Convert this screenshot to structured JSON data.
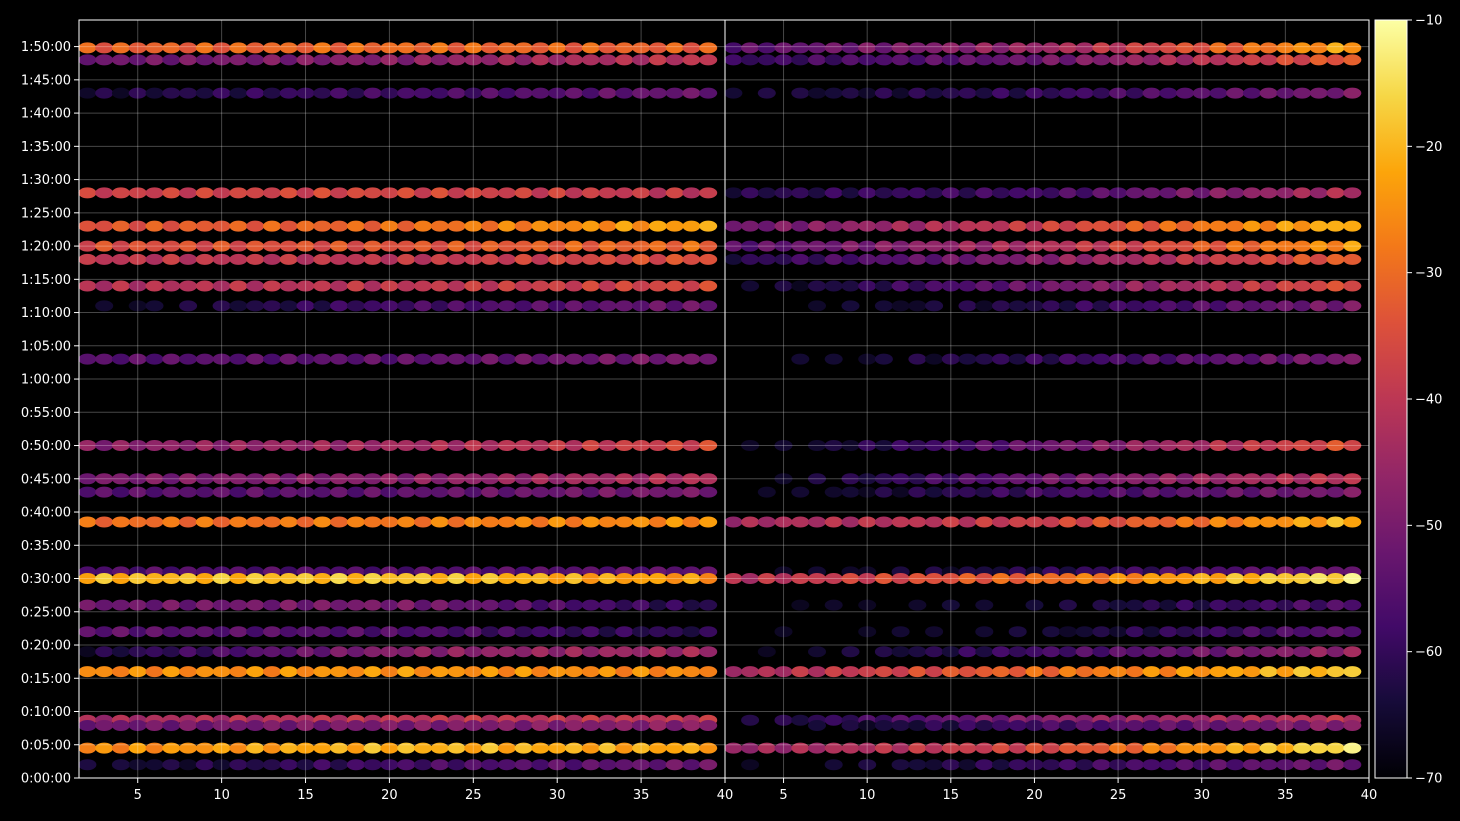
{
  "chart_data": {
    "type": "heatmap",
    "title": "",
    "panels": [
      {
        "name": "left",
        "xlim": [
          1.5,
          40
        ]
      },
      {
        "name": "right",
        "xlim": [
          1.5,
          40
        ]
      }
    ],
    "x_ticks": [
      5,
      10,
      15,
      20,
      25,
      30,
      35,
      40
    ],
    "x_tick_labels": [
      "5",
      "10",
      "15",
      "20",
      "25",
      "30",
      "35",
      "40"
    ],
    "y_tick_labels": [
      "0:00:00",
      "0:05:00",
      "0:10:00",
      "0:15:00",
      "0:20:00",
      "0:25:00",
      "0:30:00",
      "0:35:00",
      "0:40:00",
      "0:45:00",
      "0:50:00",
      "0:55:00",
      "1:00:00",
      "1:05:00",
      "1:10:00",
      "1:15:00",
      "1:20:00",
      "1:25:00",
      "1:30:00",
      "1:35:00",
      "1:40:00",
      "1:45:00",
      "1:50:00"
    ],
    "ylim_seconds": [
      0,
      6840
    ],
    "grid": true,
    "colormap": "inferno",
    "colorbar": {
      "range": [
        -70,
        -10
      ],
      "ticks": [
        -10,
        -20,
        -30,
        -40,
        -50,
        -60,
        -70
      ],
      "tick_labels": [
        "−10",
        "−20",
        "−30",
        "−40",
        "−50",
        "−60",
        "−70"
      ]
    },
    "bands": [
      {
        "t": 6588,
        "left": [
          -32,
          -30,
          -32
        ],
        "right": [
          -55,
          -45,
          -22
        ]
      },
      {
        "t": 6480,
        "left": [
          -52,
          -48,
          -40
        ],
        "right": [
          -60,
          -52,
          -32
        ]
      },
      {
        "t": 6180,
        "left": [
          -64,
          -58,
          -52
        ],
        "right": [
          -66,
          -60,
          -50
        ]
      },
      {
        "t": 5280,
        "left": [
          -38,
          -36,
          -40
        ],
        "right": [
          -62,
          -58,
          -42
        ]
      },
      {
        "t": 4980,
        "left": [
          -34,
          -30,
          -22
        ],
        "right": [
          -52,
          -38,
          -20
        ]
      },
      {
        "t": 4800,
        "left": [
          -35,
          -34,
          -30
        ],
        "right": [
          -55,
          -42,
          -24
        ]
      },
      {
        "t": 4680,
        "left": [
          -40,
          -40,
          -34
        ],
        "right": [
          -62,
          -48,
          -32
        ]
      },
      {
        "t": 4440,
        "left": [
          -42,
          -40,
          -36
        ],
        "right": [
          -68,
          -52,
          -34
        ]
      },
      {
        "t": 4260,
        "left": [
          -68,
          -58,
          -52
        ],
        "right": [
          -70,
          -62,
          -50
        ]
      },
      {
        "t": 3780,
        "left": [
          -55,
          -54,
          -50
        ],
        "right": [
          -70,
          -60,
          -50
        ]
      },
      {
        "t": 3000,
        "left": [
          -48,
          -44,
          -36
        ],
        "right": [
          -70,
          -52,
          -34
        ]
      },
      {
        "t": 2700,
        "left": [
          -50,
          -48,
          -42
        ],
        "right": [
          -70,
          -52,
          -40
        ]
      },
      {
        "t": 2580,
        "left": [
          -55,
          -54,
          -50
        ],
        "right": [
          -70,
          -58,
          -50
        ]
      },
      {
        "t": 2310,
        "left": [
          -30,
          -28,
          -25
        ],
        "right": [
          -44,
          -38,
          -20
        ]
      },
      {
        "t": 1860,
        "left": [
          -56,
          -56,
          -54
        ],
        "right": [
          -70,
          -62,
          -52
        ]
      },
      {
        "t": 1800,
        "left": [
          -20,
          -18,
          -24
        ],
        "right": [
          -42,
          -30,
          -14
        ]
      },
      {
        "t": 1560,
        "left": [
          -52,
          -50,
          -62
        ],
        "right": [
          -70,
          -66,
          -56
        ]
      },
      {
        "t": 1320,
        "left": [
          -54,
          -56,
          -62
        ],
        "right": [
          -70,
          -66,
          -54
        ]
      },
      {
        "t": 1140,
        "left": [
          -64,
          -48,
          -44
        ],
        "right": [
          -70,
          -58,
          -46
        ]
      },
      {
        "t": 960,
        "left": [
          -26,
          -24,
          -26
        ],
        "right": [
          -44,
          -30,
          -18
        ]
      },
      {
        "t": 522,
        "left": [
          -44,
          -40,
          -40
        ],
        "right": [
          -66,
          -48,
          -40
        ]
      },
      {
        "t": 474,
        "left": [
          -52,
          -50,
          -48
        ],
        "right": [
          -70,
          -58,
          -48
        ]
      },
      {
        "t": 270,
        "left": [
          -26,
          -20,
          -22
        ],
        "right": [
          -46,
          -36,
          -14
        ]
      },
      {
        "t": 120,
        "left": [
          -66,
          -58,
          -52
        ],
        "right": [
          -70,
          -60,
          -52
        ]
      }
    ]
  }
}
